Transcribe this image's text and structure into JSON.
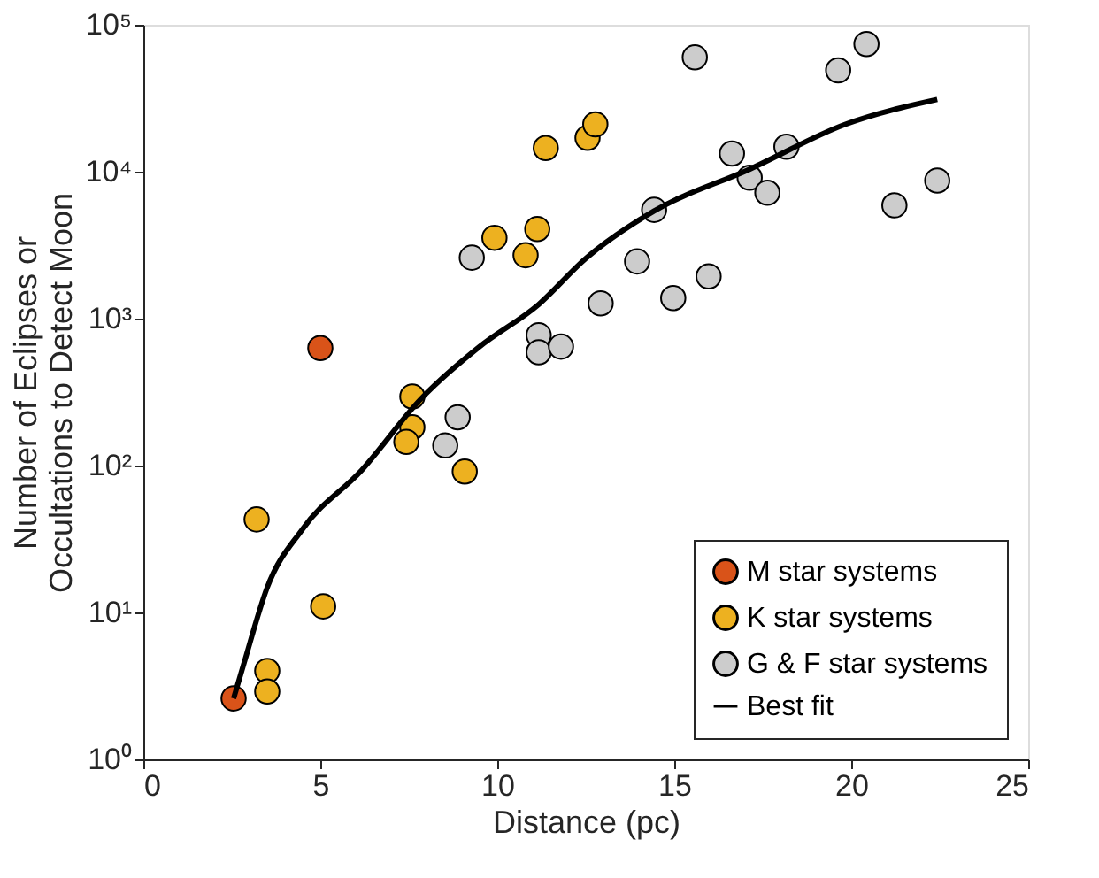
{
  "chart_data": {
    "type": "scatter",
    "xlabel": "Distance (pc)",
    "ylabel": "Number of Eclipses or Occultations to Detect Moon",
    "log": "y",
    "marker": "circle",
    "grid": false,
    "legend": "bottom right",
    "xlim": [
      0,
      25
    ],
    "xticks": [
      0,
      5,
      10,
      15,
      20,
      25
    ],
    "ylim": [
      1,
      100000
    ],
    "yticks": [
      {
        "value": 1,
        "label": "10⁰"
      },
      {
        "value": 10,
        "label": "10¹"
      },
      {
        "value": 100,
        "label": "10²"
      },
      {
        "value": 1000,
        "label": "10³"
      },
      {
        "value": 10000,
        "label": "10⁴"
      },
      {
        "value": 100000,
        "label": "10⁵"
      }
    ],
    "series": [
      {
        "name": "M star systems",
        "color": "#d95319",
        "x": [
          2.55,
          5.0
        ],
        "values": [
          2.6,
          630
        ]
      },
      {
        "name": "K star systems",
        "color": "#edb120",
        "x": [
          3.2,
          5.08,
          3.5,
          3.5,
          7.6,
          7.6,
          7.43,
          9.08,
          9.92,
          10.8,
          11.13,
          11.37,
          12.55,
          12.77
        ],
        "values": [
          43,
          11,
          4.0,
          2.9,
          295,
          182,
          145,
          91,
          3550,
          2700,
          4070,
          14500,
          17000,
          21000
        ]
      },
      {
        "name": "G & F star systems",
        "color": "#cccccc",
        "x": [
          9.28,
          8.88,
          8.53,
          11.17,
          11.17,
          11.8,
          12.92,
          13.95,
          14.43,
          14.97,
          15.97,
          15.58,
          16.63,
          17.13,
          17.63,
          18.17,
          19.63,
          20.43,
          21.22,
          22.43
        ],
        "values": [
          2600,
          213,
          137,
          770,
          590,
          645,
          1270,
          2450,
          5500,
          1380,
          1940,
          60000,
          13300,
          9100,
          7200,
          14800,
          49000,
          74000,
          5900,
          8700
        ]
      },
      {
        "name": "Best fit",
        "type": "line",
        "marker": "none",
        "color": "#000000",
        "x": [
          2.55,
          2.83,
          3.5,
          4.5,
          6.17,
          7.83,
          9.5,
          11.17,
          12.5,
          14.43,
          17.13,
          19.83,
          22.43
        ],
        "values": [
          2.6,
          4.4,
          14.8,
          37,
          93,
          282,
          645,
          1250,
          2570,
          5400,
          10400,
          21000,
          31000
        ]
      }
    ]
  }
}
